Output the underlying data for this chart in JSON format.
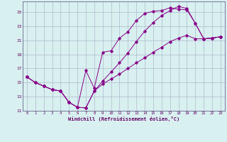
{
  "xlabel": "Windchill (Refroidissement éolien,°C)",
  "bg_color": "#d8f0f0",
  "line_color": "#880088",
  "grid_color": "#b0b8cc",
  "xlim": [
    -0.5,
    23.5
  ],
  "ylim": [
    11,
    26.5
  ],
  "xticks": [
    0,
    1,
    2,
    3,
    4,
    5,
    6,
    7,
    8,
    9,
    10,
    11,
    12,
    13,
    14,
    15,
    16,
    17,
    18,
    19,
    20,
    21,
    22,
    23
  ],
  "yticks": [
    11,
    13,
    15,
    17,
    19,
    21,
    23,
    25
  ],
  "line1_x": [
    0,
    1,
    2,
    3,
    4,
    5,
    6,
    7,
    8,
    9,
    10,
    11,
    12,
    13,
    14,
    15,
    16,
    17,
    18,
    19,
    20,
    21,
    22,
    23
  ],
  "line1_y": [
    15.8,
    15.0,
    14.5,
    14.0,
    13.8,
    12.2,
    11.5,
    16.7,
    14.2,
    19.3,
    19.5,
    21.3,
    22.2,
    23.8,
    24.8,
    25.1,
    25.2,
    25.6,
    25.4,
    25.3,
    23.4,
    21.2,
    21.3,
    21.5
  ],
  "line2_x": [
    0,
    1,
    2,
    3,
    4,
    5,
    6,
    7,
    8,
    9,
    10,
    11,
    12,
    13,
    14,
    15,
    16,
    17,
    18,
    19,
    20,
    21,
    22,
    23
  ],
  "line2_y": [
    15.8,
    15.0,
    14.5,
    14.0,
    13.8,
    12.2,
    11.5,
    11.4,
    13.8,
    15.2,
    16.5,
    17.8,
    19.2,
    20.8,
    22.3,
    23.5,
    24.5,
    25.2,
    25.8,
    25.5,
    23.4,
    21.2,
    21.3,
    21.5
  ],
  "line3_x": [
    0,
    1,
    2,
    3,
    4,
    5,
    6,
    7,
    8,
    9,
    10,
    11,
    12,
    13,
    14,
    15,
    16,
    17,
    18,
    19,
    20,
    21,
    22,
    23
  ],
  "line3_y": [
    15.8,
    15.0,
    14.5,
    14.0,
    13.8,
    12.2,
    11.5,
    11.4,
    13.8,
    14.8,
    15.5,
    16.2,
    17.0,
    17.8,
    18.5,
    19.3,
    20.0,
    20.8,
    21.3,
    21.7,
    21.2,
    21.2,
    21.3,
    21.5
  ]
}
